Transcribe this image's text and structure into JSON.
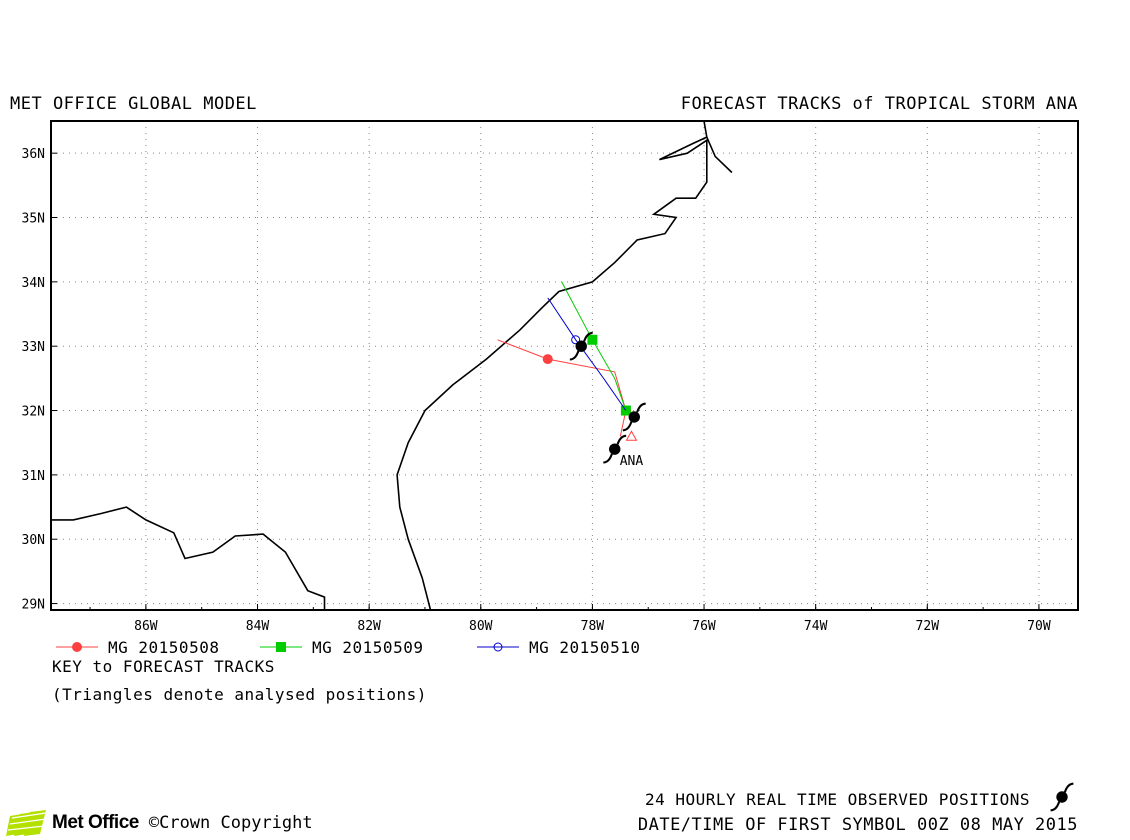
{
  "header": {
    "model": "MET OFFICE GLOBAL MODEL",
    "title": "FORECAST TRACKS of TROPICAL STORM ANA"
  },
  "map": {
    "lon_range": [
      -87.7,
      -69.3
    ],
    "lat_range": [
      28.9,
      36.5
    ],
    "lon_ticks": [
      {
        "value": -86,
        "label": "86W"
      },
      {
        "value": -84,
        "label": "84W"
      },
      {
        "value": -82,
        "label": "82W"
      },
      {
        "value": -80,
        "label": "80W"
      },
      {
        "value": -78,
        "label": "78W"
      },
      {
        "value": -76,
        "label": "76W"
      },
      {
        "value": -74,
        "label": "74W"
      },
      {
        "value": -72,
        "label": "72W"
      },
      {
        "value": -70,
        "label": "70W"
      }
    ],
    "lat_ticks": [
      {
        "value": 29,
        "label": "29N"
      },
      {
        "value": 30,
        "label": "30N"
      },
      {
        "value": 31,
        "label": "31N"
      },
      {
        "value": 32,
        "label": "32N"
      },
      {
        "value": 33,
        "label": "33N"
      },
      {
        "value": 34,
        "label": "34N"
      },
      {
        "value": 35,
        "label": "35N"
      },
      {
        "value": 36,
        "label": "36N"
      }
    ],
    "grid": true,
    "coastline_atlantic": [
      [
        -80.9,
        28.9
      ],
      [
        -81.05,
        29.4
      ],
      [
        -81.3,
        30.0
      ],
      [
        -81.45,
        30.5
      ],
      [
        -81.5,
        31.0
      ],
      [
        -81.3,
        31.5
      ],
      [
        -81.0,
        32.0
      ],
      [
        -80.5,
        32.4
      ],
      [
        -79.9,
        32.8
      ],
      [
        -79.3,
        33.25
      ],
      [
        -78.9,
        33.6
      ],
      [
        -78.6,
        33.85
      ],
      [
        -78.0,
        34.0
      ],
      [
        -77.6,
        34.3
      ],
      [
        -77.2,
        34.65
      ],
      [
        -76.7,
        34.75
      ],
      [
        -76.5,
        35.0
      ],
      [
        -76.9,
        35.05
      ],
      [
        -76.5,
        35.3
      ],
      [
        -76.15,
        35.3
      ],
      [
        -75.95,
        35.55
      ],
      [
        -75.95,
        36.2
      ],
      [
        -76.3,
        36.0
      ],
      [
        -76.8,
        35.9
      ],
      [
        -76.2,
        36.15
      ],
      [
        -75.95,
        36.25
      ],
      [
        -75.8,
        35.95
      ],
      [
        -75.5,
        35.7
      ]
    ],
    "coastline_outer_banks": [
      [
        -75.95,
        36.25
      ],
      [
        -76.0,
        36.5
      ]
    ],
    "coastline_gulf": [
      [
        -87.7,
        30.3
      ],
      [
        -87.3,
        30.3
      ],
      [
        -86.8,
        30.4
      ],
      [
        -86.35,
        30.5
      ],
      [
        -86.0,
        30.3
      ],
      [
        -85.5,
        30.1
      ],
      [
        -85.3,
        29.7
      ],
      [
        -84.8,
        29.8
      ],
      [
        -84.4,
        30.05
      ],
      [
        -83.9,
        30.08
      ],
      [
        -83.5,
        29.8
      ],
      [
        -83.1,
        29.2
      ],
      [
        -82.8,
        29.1
      ],
      [
        -82.8,
        28.9
      ]
    ],
    "colors": {
      "track_20150508": "#ff4040",
      "track_20150509": "#00cc00",
      "track_20150510": "#0000cc",
      "coastline": "#000000"
    },
    "tracks": [
      {
        "name": "MG 20150508",
        "color": "#ff4040",
        "marker": "filled-circle",
        "points": [
          [
            -77.5,
            31.6
          ],
          [
            -77.4,
            32.0
          ],
          [
            -77.6,
            32.6
          ],
          [
            -78.8,
            32.8
          ],
          [
            -79.7,
            33.1
          ]
        ],
        "marked_points": [
          [
            -77.4,
            32.0
          ],
          [
            -78.8,
            32.8
          ]
        ],
        "analysed": [
          [
            -77.3,
            31.6
          ]
        ]
      },
      {
        "name": "MG 20150509",
        "color": "#00cc00",
        "marker": "filled-square",
        "points": [
          [
            -77.4,
            32.0
          ],
          [
            -77.6,
            32.5
          ],
          [
            -78.0,
            33.1
          ],
          [
            -78.55,
            34.0
          ]
        ],
        "marked_points": [
          [
            -77.4,
            32.0
          ],
          [
            -78.0,
            33.1
          ]
        ],
        "analysed": []
      },
      {
        "name": "MG 20150510",
        "color": "#0000cc",
        "marker": "open-circle",
        "points": [
          [
            -77.4,
            32.0
          ],
          [
            -77.8,
            32.5
          ],
          [
            -78.3,
            33.1
          ],
          [
            -78.8,
            33.75
          ]
        ],
        "marked_points": [
          [
            -78.3,
            33.1
          ]
        ],
        "analysed": []
      }
    ],
    "observed_positions": [
      [
        -77.6,
        31.4
      ],
      [
        -77.25,
        31.9
      ],
      [
        -78.2,
        33.0
      ]
    ],
    "storm_label": {
      "text": "ANA",
      "lon": -77.3,
      "lat": 31.15
    }
  },
  "legend": {
    "items": [
      {
        "label": "MG 20150508",
        "color": "#ff4040",
        "marker": "filled-circle"
      },
      {
        "label": "MG 20150509",
        "color": "#00cc00",
        "marker": "filled-square"
      },
      {
        "label": "MG 20150510",
        "color": "#0000cc",
        "marker": "open-circle"
      }
    ],
    "key_title": "KEY to FORECAST TRACKS",
    "key_note": "(Triangles denote analysed positions)"
  },
  "footer": {
    "brand": "Met Office",
    "copyright": "©Crown Copyright",
    "observed_note": "24 HOURLY REAL TIME OBSERVED POSITIONS",
    "first_symbol": "DATE/TIME OF FIRST SYMBOL 00Z 08 MAY 2015"
  }
}
